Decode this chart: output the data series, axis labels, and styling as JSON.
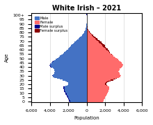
{
  "title": "White Irish – 2021",
  "xlabel": "Population",
  "ylabel": "Age",
  "male": [
    1850,
    1900,
    1950,
    2000,
    2050,
    2100,
    2150,
    2200,
    2250,
    2300,
    2350,
    2400,
    2450,
    2480,
    2500,
    2520,
    2550,
    2520,
    2300,
    2100,
    2000,
    1980,
    2050,
    2150,
    2300,
    2600,
    2900,
    3200,
    3500,
    3700,
    3750,
    3700,
    3600,
    3550,
    3500,
    3450,
    3500,
    3550,
    3600,
    3700,
    3900,
    4000,
    4050,
    4000,
    3950,
    3850,
    3750,
    3650,
    3550,
    3400,
    3250,
    3100,
    3000,
    2900,
    2800,
    2650,
    2550,
    2450,
    2350,
    2250,
    2150,
    2050,
    1950,
    1850,
    1750,
    1700,
    1600,
    1500,
    1400,
    1300,
    1200,
    1100,
    1000,
    900,
    800,
    700,
    600,
    520,
    440,
    370,
    300,
    250,
    200,
    160,
    125,
    100,
    75,
    55,
    40,
    28,
    18,
    12,
    8,
    5,
    3,
    2,
    1,
    1,
    1,
    1,
    1,
    50,
    80
  ],
  "female": [
    1750,
    1800,
    1850,
    1900,
    1950,
    2000,
    2050,
    2100,
    2150,
    2200,
    2250,
    2300,
    2350,
    2380,
    2400,
    2420,
    2450,
    2420,
    2300,
    2200,
    2100,
    2100,
    2200,
    2350,
    2550,
    2850,
    3100,
    3300,
    3500,
    3650,
    3700,
    3650,
    3600,
    3550,
    3500,
    3450,
    3500,
    3550,
    3600,
    3700,
    3800,
    3900,
    3950,
    3950,
    3900,
    3800,
    3700,
    3600,
    3500,
    3400,
    3250,
    3100,
    3000,
    2900,
    2800,
    2700,
    2600,
    2500,
    2450,
    2400,
    2350,
    2250,
    2150,
    2050,
    1950,
    1950,
    1880,
    1780,
    1680,
    1580,
    1480,
    1380,
    1250,
    1130,
    1010,
    900,
    790,
    680,
    580,
    490,
    400,
    330,
    265,
    210,
    165,
    125,
    95,
    70,
    50,
    35,
    24,
    16,
    10,
    7,
    4,
    3,
    2,
    1,
    1,
    1,
    1,
    1,
    120,
    150
  ],
  "male_color": "#4472C4",
  "female_color": "#FF6B6B",
  "male_surplus_color": "#00008B",
  "female_surplus_color": "#8B0000",
  "background_color": "#FFFFFF",
  "grid_color": "#CCCCCC",
  "xlim": 6000,
  "title_fontsize": 7,
  "axis_fontsize": 5,
  "tick_fontsize": 4.5
}
